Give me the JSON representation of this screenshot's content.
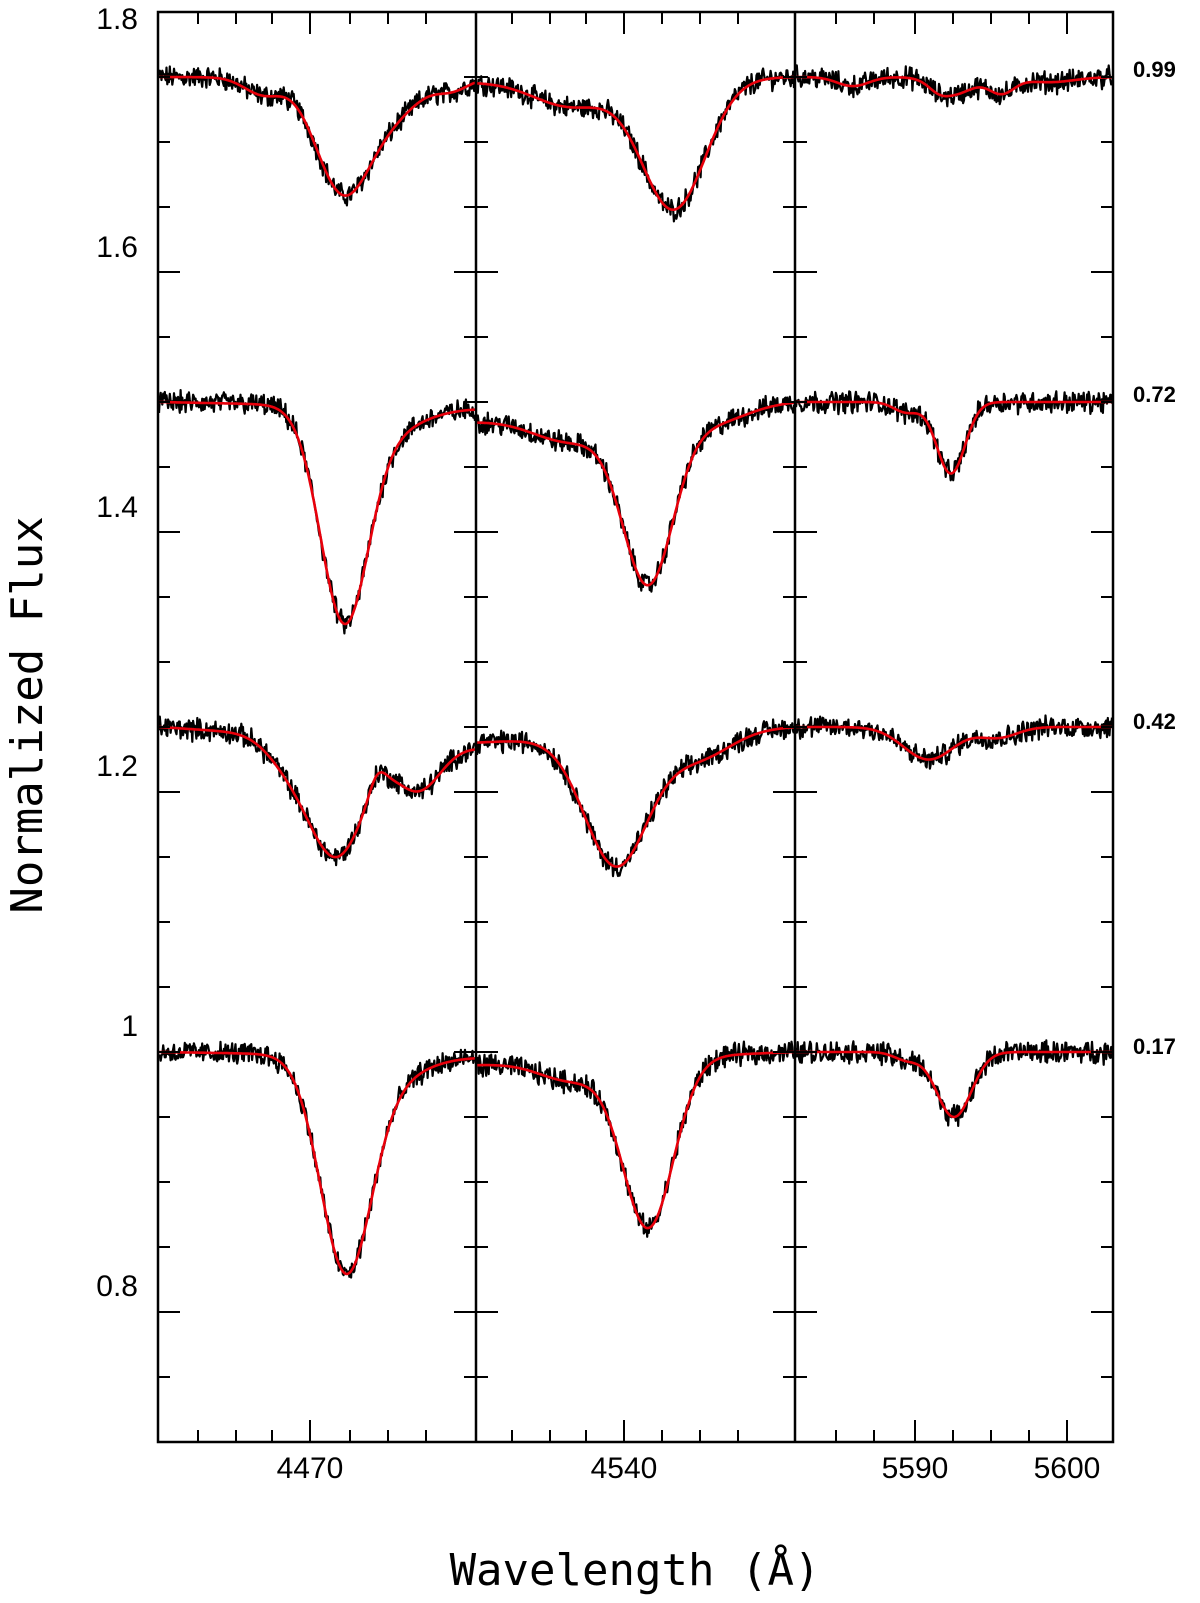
{
  "chart_data": {
    "type": "line",
    "ylabel": "Normalized Flux",
    "xlabel": "Wavelength (Å)",
    "ylim": [
      0.7,
      1.8
    ],
    "y_ticks": [
      "0.8",
      "1",
      "1.2",
      "1.4",
      "1.6",
      "1.8"
    ],
    "y_tick_values": [
      0.8,
      1.0,
      1.2,
      1.4,
      1.6,
      1.8
    ],
    "colors": {
      "observed": "#000000",
      "model": "#e8000b"
    },
    "panels": [
      {
        "xlim": [
          4490,
          4450
        ],
        "x_tick": "4470",
        "x_tick_value": 4470
      },
      {
        "xlim": [
          4562,
          4522
        ],
        "x_tick": "4540",
        "x_tick_value": 4540
      },
      {
        "xlim": [
          5582,
          5602
        ],
        "x_tick": "5590",
        "x_tick_value": 5590,
        "x_tick2": "5600",
        "x_tick2_value": 5600
      }
    ],
    "phases": [
      {
        "label": "0.99",
        "offset": 0.75
      },
      {
        "label": "0.72",
        "offset": 0.5
      },
      {
        "label": "0.42",
        "offset": 0.25
      },
      {
        "label": "0.17",
        "offset": 0.0
      }
    ]
  }
}
